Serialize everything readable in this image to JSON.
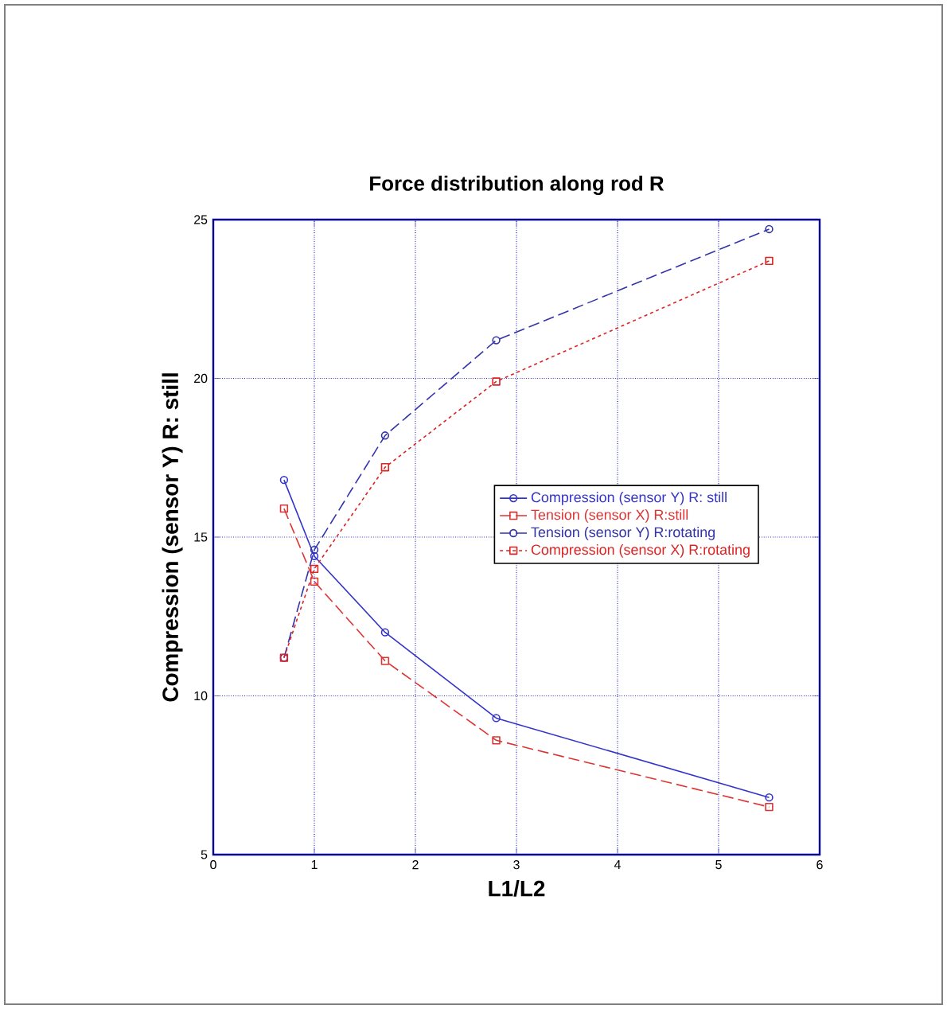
{
  "chart_data": {
    "type": "line",
    "title": "Force distribution along rod R",
    "xlabel": "L1/L2",
    "ylabel": "Compression (sensor Y) R: still",
    "xlim": [
      0,
      6
    ],
    "ylim": [
      5,
      25
    ],
    "xticks": [
      0,
      1,
      2,
      3,
      4,
      5,
      6
    ],
    "yticks": [
      5,
      10,
      15,
      20,
      25
    ],
    "grid": true,
    "legend": "right",
    "series": [
      {
        "name": "Compression (sensor Y) R: still",
        "color": "#3333cc",
        "marker": "circle",
        "line_style": "solid",
        "x": [
          0.7,
          1.0,
          1.7,
          2.8,
          5.5
        ],
        "values": [
          16.8,
          14.4,
          12.0,
          9.3,
          6.8
        ]
      },
      {
        "name": "Tension (sensor X) R:still",
        "color": "#dd3333",
        "marker": "square",
        "line_style": "dashed",
        "x": [
          0.7,
          1.0,
          1.7,
          2.8,
          5.5
        ],
        "values": [
          15.9,
          13.6,
          11.1,
          8.6,
          6.5
        ]
      },
      {
        "name": "Tension (sensor Y) R:rotating",
        "color": "#3333aa",
        "marker": "circle",
        "line_style": "dashed",
        "x": [
          0.7,
          1.0,
          1.7,
          2.8,
          5.5
        ],
        "values": [
          11.2,
          14.6,
          18.2,
          21.2,
          24.7
        ]
      },
      {
        "name": "Compression (sensor X) R:rotating",
        "color": "#dd2222",
        "marker": "square",
        "line_style": "dotted",
        "x": [
          0.7,
          1.0,
          1.7,
          2.8,
          5.5
        ],
        "values": [
          11.2,
          14.0,
          17.2,
          19.9,
          23.7
        ]
      }
    ]
  }
}
